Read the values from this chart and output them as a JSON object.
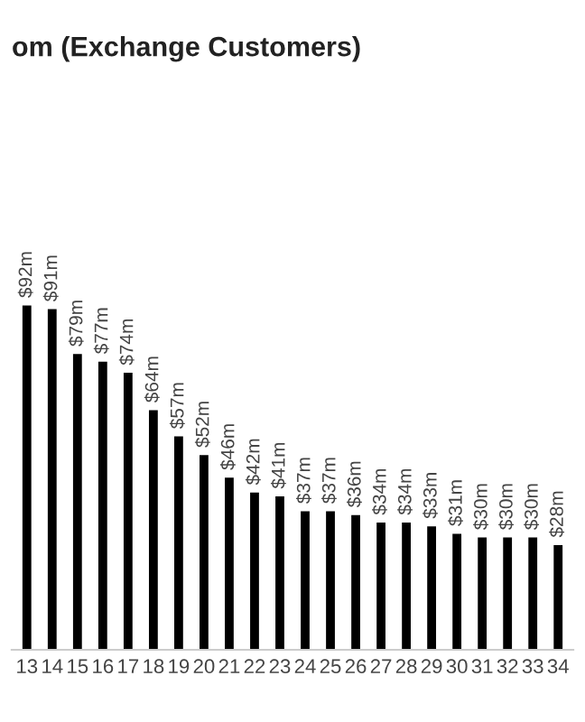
{
  "chart_data": {
    "type": "bar",
    "title": "om (Exchange Customers)",
    "categories": [
      "13",
      "14",
      "15",
      "16",
      "17",
      "18",
      "19",
      "20",
      "21",
      "22",
      "23",
      "24",
      "25",
      "26",
      "27",
      "28",
      "29",
      "30",
      "31",
      "32",
      "33",
      "34"
    ],
    "values": [
      92,
      91,
      79,
      77,
      74,
      64,
      57,
      52,
      46,
      42,
      41,
      37,
      37,
      36,
      34,
      34,
      33,
      31,
      30,
      30,
      30,
      28
    ],
    "value_labels": [
      "$92m",
      "$91m",
      "$79m",
      "$77m",
      "$74m",
      "$64m",
      "$57m",
      "$52m",
      "$46m",
      "$42m",
      "$41m",
      "$37m",
      "$37m",
      "$36m",
      "$34m",
      "$34m",
      "$33m",
      "$31m",
      "$30m",
      "$30m",
      "$30m",
      "$28m"
    ],
    "color": "#000000"
  }
}
